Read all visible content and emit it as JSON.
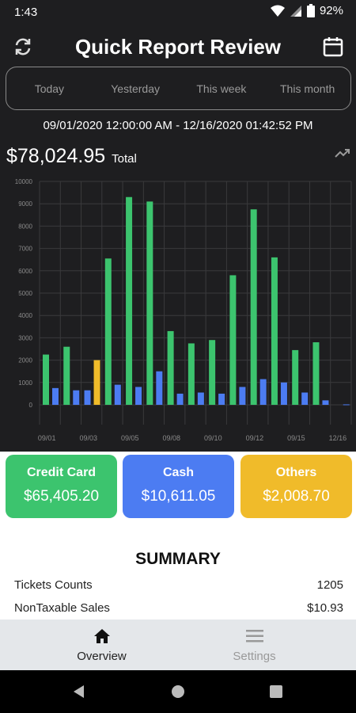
{
  "status_bar": {
    "time": "1:43",
    "battery": "92%"
  },
  "header": {
    "title": "Quick Report Review"
  },
  "period_tabs": [
    "Today",
    "Yesterday",
    "This week",
    "This month"
  ],
  "date_range": "09/01/2020 12:00:00 AM - 12/16/2020 01:42:52 PM",
  "total": {
    "amount": "$78,024.95",
    "label": "Total"
  },
  "chart_data": {
    "type": "bar",
    "ylim": [
      0,
      10000
    ],
    "y_ticks": [
      "0",
      "1000",
      "2000",
      "3000",
      "4000",
      "5000",
      "6000",
      "7000",
      "8000",
      "9000",
      "10000"
    ],
    "x_labels": [
      "09/01",
      "09/03",
      "09/05",
      "09/08",
      "09/10",
      "09/12",
      "09/15",
      "12/16"
    ],
    "grid": true,
    "groups": [
      {
        "credit": 2250,
        "cash": 750,
        "others": 0
      },
      {
        "credit": 2600,
        "cash": 650,
        "others": 0
      },
      {
        "credit": 0,
        "cash": 650,
        "others": 2000
      },
      {
        "credit": 6550,
        "cash": 900,
        "others": 0
      },
      {
        "credit": 9300,
        "cash": 800,
        "others": 0
      },
      {
        "credit": 9100,
        "cash": 1500,
        "others": 0
      },
      {
        "credit": 3300,
        "cash": 500,
        "others": 0
      },
      {
        "credit": 2750,
        "cash": 550,
        "others": 0
      },
      {
        "credit": 2900,
        "cash": 500,
        "others": 0
      },
      {
        "credit": 5800,
        "cash": 800,
        "others": 0
      },
      {
        "credit": 8750,
        "cash": 1150,
        "others": 0
      },
      {
        "credit": 6600,
        "cash": 1000,
        "others": 0
      },
      {
        "credit": 2450,
        "cash": 550,
        "others": 0
      },
      {
        "credit": 2800,
        "cash": 200,
        "others": 0
      },
      {
        "credit": 0,
        "cash": 20,
        "others": 0
      }
    ]
  },
  "payment_cards": [
    {
      "label": "Credit Card",
      "value": "$65,405.20",
      "color": "#3cc46e"
    },
    {
      "label": "Cash",
      "value": "$10,611.05",
      "color": "#4c7cf2"
    },
    {
      "label": "Others",
      "value": "$2,008.70",
      "color": "#f0bb2a"
    }
  ],
  "summary": {
    "title": "SUMMARY",
    "rows": [
      {
        "label": "Tickets Counts",
        "value": "1205"
      },
      {
        "label": "NonTaxable Sales",
        "value": "$10.93"
      }
    ]
  },
  "bottom_nav": [
    {
      "label": "Overview",
      "active": true
    },
    {
      "label": "Settings",
      "active": false
    }
  ],
  "colors": {
    "credit": "#3cc46e",
    "cash": "#4c7cf2",
    "others": "#f0bb2a",
    "background": "#1e1e20"
  }
}
